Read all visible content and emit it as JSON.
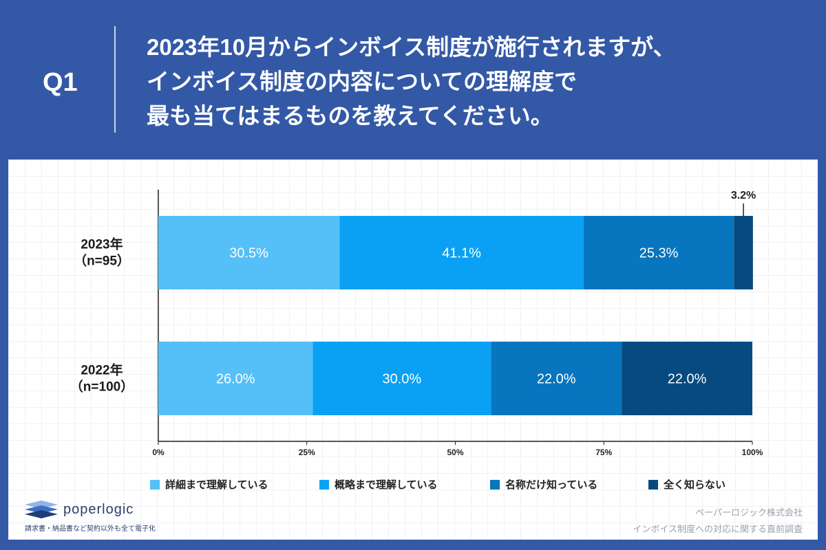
{
  "header": {
    "q_number": "Q1",
    "question_lines": [
      "2023年10月からインボイス制度が施行されますが、",
      "インボイス制度の内容についての理解度で",
      "最も当てはまるものを教えてください。"
    ]
  },
  "chart_data": {
    "type": "bar",
    "orientation": "horizontal",
    "stacked": true,
    "categories": [
      "2023年\n（n=95）",
      "2022年\n（n=100）"
    ],
    "series": [
      {
        "name": "詳細まで理解している",
        "color": "#55bff8",
        "values": [
          30.5,
          26.0
        ]
      },
      {
        "name": "概略まで理解している",
        "color": "#0aa1f4",
        "values": [
          41.1,
          30.0
        ]
      },
      {
        "name": "名称だけ知っている",
        "color": "#0875bf",
        "values": [
          25.3,
          22.0
        ]
      },
      {
        "name": "全く知らない",
        "color": "#064a80",
        "values": [
          3.2,
          22.0
        ]
      }
    ],
    "data_labels": [
      [
        "30.5%",
        "26.0%"
      ],
      [
        "41.1%",
        "30.0%"
      ],
      [
        "25.3%",
        "22.0%"
      ],
      [
        "3.2%",
        "22.0%"
      ]
    ],
    "xlim": [
      0,
      100
    ],
    "xticks": [
      "0%",
      "25%",
      "50%",
      "75%",
      "100%"
    ],
    "legend_position": "bottom"
  },
  "footer": {
    "logo_text": "poperlogic",
    "logo_tagline": "請求書・納品書など契約以外も全て電子化",
    "credit_company": "ペーパーロジック株式会社",
    "credit_survey": "インボイス制度への対応に関する直前調査"
  }
}
